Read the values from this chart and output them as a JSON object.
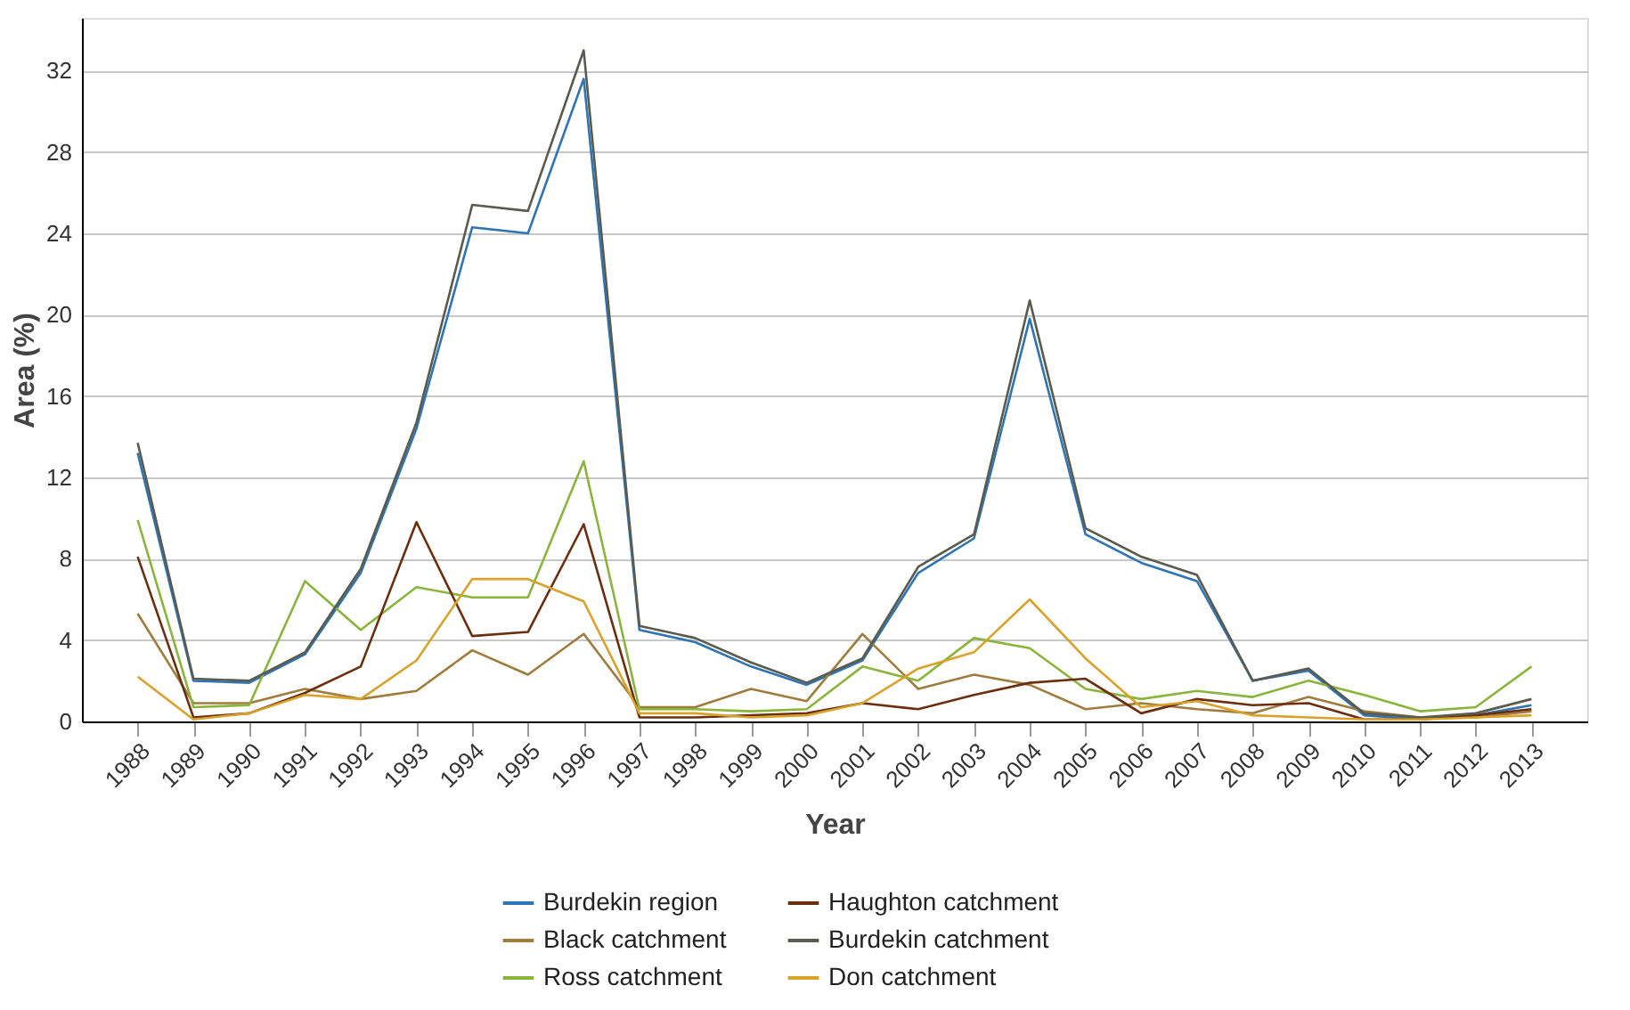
{
  "chart_data": {
    "type": "line",
    "xlabel": "Year",
    "ylabel": "Area (%)",
    "categories": [
      "1988",
      "1989",
      "1990",
      "1991",
      "1992",
      "1993",
      "1994",
      "1995",
      "1996",
      "1997",
      "1998",
      "1999",
      "2000",
      "2001",
      "2002",
      "2003",
      "2004",
      "2005",
      "2006",
      "2007",
      "2008",
      "2009",
      "2010",
      "2011",
      "2012",
      "2013"
    ],
    "ylim": [
      0,
      34.6
    ],
    "yticks": [
      0,
      4,
      8,
      12,
      16,
      20,
      24,
      28,
      32
    ],
    "grid": "y",
    "legend": "bottom",
    "marker": "none",
    "line_style": "solid",
    "series": [
      {
        "name": "Burdekin region",
        "color": "#2e75b6",
        "values": [
          13.2,
          2.0,
          1.9,
          3.3,
          7.3,
          14.4,
          24.3,
          24.0,
          31.6,
          4.5,
          3.9,
          2.7,
          1.8,
          3.0,
          7.3,
          9.0,
          19.8,
          9.2,
          7.8,
          6.9,
          2.0,
          2.5,
          0.3,
          0.1,
          0.3,
          0.8
        ]
      },
      {
        "name": "Black catchment",
        "color": "#a07c3c",
        "values": [
          5.3,
          0.9,
          0.9,
          1.6,
          1.1,
          1.5,
          3.5,
          2.3,
          4.3,
          0.7,
          0.7,
          1.6,
          1.0,
          4.3,
          1.6,
          2.3,
          1.8,
          0.6,
          0.9,
          0.6,
          0.4,
          1.2,
          0.5,
          0.2,
          0.2,
          0.5
        ]
      },
      {
        "name": "Ross catchment",
        "color": "#8ab53c",
        "values": [
          9.9,
          0.7,
          0.8,
          6.9,
          4.5,
          6.6,
          6.1,
          6.1,
          12.8,
          0.6,
          0.6,
          0.5,
          0.6,
          2.7,
          2.0,
          4.1,
          3.6,
          1.6,
          1.1,
          1.5,
          1.2,
          2.0,
          1.3,
          0.5,
          0.7,
          2.7
        ]
      },
      {
        "name": "Haughton catchment",
        "color": "#6b2e0f",
        "values": [
          8.1,
          0.2,
          0.4,
          1.4,
          2.7,
          9.8,
          4.2,
          4.4,
          9.7,
          0.2,
          0.2,
          0.3,
          0.4,
          0.9,
          0.6,
          1.3,
          1.9,
          2.1,
          0.4,
          1.1,
          0.8,
          0.9,
          0.1,
          0.1,
          0.3,
          0.6
        ]
      },
      {
        "name": "Burdekin catchment",
        "color": "#5a5a4e",
        "values": [
          13.7,
          2.1,
          2.0,
          3.4,
          7.5,
          14.7,
          25.4,
          25.1,
          33.0,
          4.7,
          4.1,
          2.9,
          1.9,
          3.1,
          7.6,
          9.2,
          20.7,
          9.5,
          8.1,
          7.2,
          2.0,
          2.6,
          0.4,
          0.2,
          0.4,
          1.1
        ]
      },
      {
        "name": "Don catchment",
        "color": "#d9a22a",
        "values": [
          2.2,
          0.1,
          0.4,
          1.3,
          1.1,
          3.0,
          7.0,
          7.0,
          5.9,
          0.4,
          0.4,
          0.2,
          0.3,
          0.9,
          2.6,
          3.4,
          6.0,
          3.1,
          0.7,
          1.0,
          0.3,
          0.2,
          0.1,
          0.1,
          0.2,
          0.3
        ]
      }
    ]
  }
}
